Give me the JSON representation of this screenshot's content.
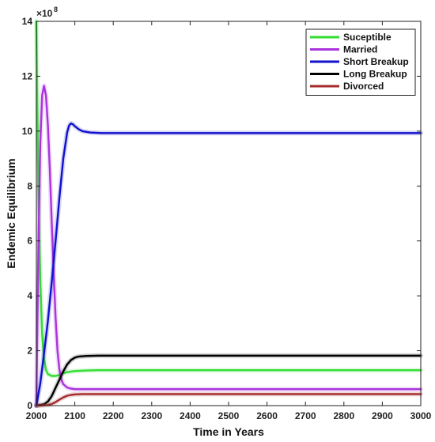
{
  "chart_data": {
    "type": "line",
    "xlabel": "Time in Years",
    "ylabel": "Endemic Equilibrium",
    "y_multiplier_label": "×10",
    "y_multiplier_exponent": "8",
    "xlim": [
      2000,
      3000
    ],
    "ylim": [
      0,
      14
    ],
    "x_ticks": [
      2000,
      2100,
      2200,
      2300,
      2400,
      2500,
      2600,
      2700,
      2800,
      2900,
      3000
    ],
    "y_ticks": [
      0,
      2,
      4,
      6,
      8,
      10,
      12,
      14
    ],
    "grid": false,
    "legend_position": "top-right",
    "series": [
      {
        "name": "Suceptible",
        "color": "#33dd33",
        "x": [
          2000,
          2005,
          2010,
          2015,
          2020,
          2025,
          2030,
          2040,
          2050,
          2060,
          2070,
          2080,
          2100,
          2130,
          2160,
          2200,
          2300,
          2500,
          3000
        ],
        "y": [
          14,
          8.0,
          4.6,
          2.6,
          1.7,
          1.3,
          1.15,
          1.08,
          1.08,
          1.12,
          1.18,
          1.22,
          1.26,
          1.28,
          1.29,
          1.29,
          1.29,
          1.29,
          1.29
        ]
      },
      {
        "name": "Married",
        "color": "#aa33dd",
        "x": [
          2000,
          2005,
          2010,
          2015,
          2020,
          2025,
          2030,
          2035,
          2040,
          2045,
          2050,
          2055,
          2060,
          2065,
          2070,
          2080,
          2090,
          2100,
          2150,
          2200,
          3000
        ],
        "y": [
          0,
          5.5,
          9.5,
          11.3,
          11.65,
          11.3,
          10.2,
          8.6,
          6.7,
          4.8,
          3.2,
          2.0,
          1.3,
          0.95,
          0.78,
          0.66,
          0.62,
          0.6,
          0.6,
          0.6,
          0.6
        ]
      },
      {
        "name": "Short Breakup",
        "color": "#1111cc",
        "x": [
          2000,
          2010,
          2020,
          2030,
          2040,
          2050,
          2060,
          2070,
          2080,
          2085,
          2090,
          2095,
          2100,
          2110,
          2120,
          2140,
          2170,
          2200,
          2300,
          3000
        ],
        "y": [
          0,
          0.8,
          1.9,
          3.1,
          4.5,
          6.0,
          7.6,
          9.0,
          9.95,
          10.2,
          10.28,
          10.25,
          10.18,
          10.07,
          10.0,
          9.95,
          9.93,
          9.93,
          9.93,
          9.93
        ]
      },
      {
        "name": "Long Breakup",
        "color": "#000000",
        "x": [
          2000,
          2020,
          2030,
          2040,
          2050,
          2060,
          2070,
          2080,
          2090,
          2100,
          2110,
          2130,
          2160,
          2200,
          2300,
          3000
        ],
        "y": [
          0,
          0.05,
          0.15,
          0.35,
          0.65,
          0.95,
          1.25,
          1.5,
          1.66,
          1.75,
          1.79,
          1.81,
          1.82,
          1.82,
          1.82,
          1.82
        ]
      },
      {
        "name": "Divorced",
        "color": "#a52a2a",
        "x": [
          2000,
          2030,
          2040,
          2050,
          2060,
          2070,
          2080,
          2090,
          2100,
          2120,
          2150,
          2200,
          2300,
          3000
        ],
        "y": [
          0,
          0.02,
          0.06,
          0.13,
          0.22,
          0.3,
          0.36,
          0.39,
          0.41,
          0.42,
          0.42,
          0.42,
          0.42,
          0.42
        ]
      }
    ]
  }
}
